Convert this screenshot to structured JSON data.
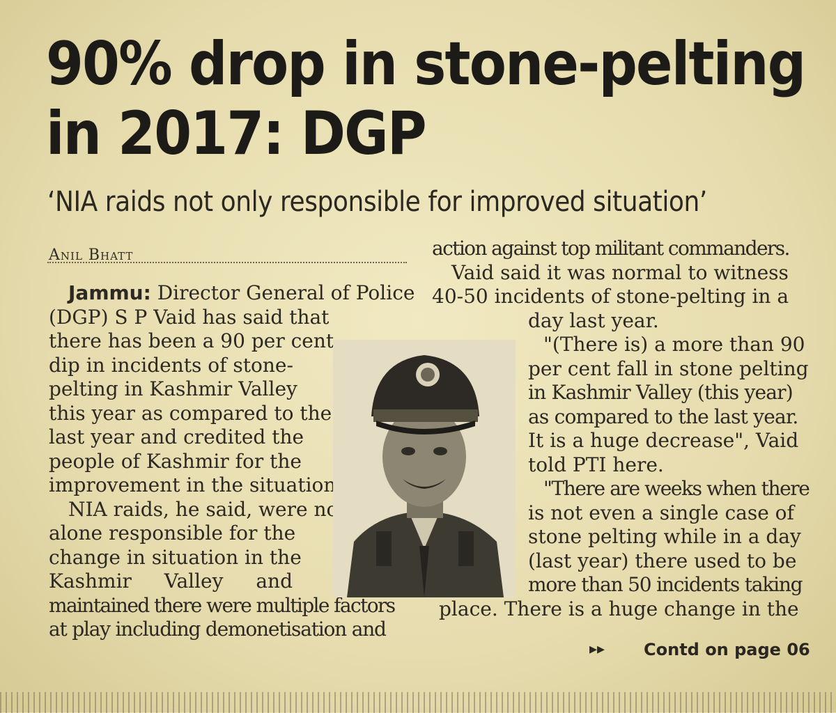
{
  "headline": {
    "line1": "90% drop in stone-pelting",
    "line2": "in 2017: DGP"
  },
  "subhead": "‘NIA raids not only responsible for improved situation’",
  "byline": "Anil Bhatt",
  "left_column": {
    "dateline": "Jammu:",
    "lines": [
      " Director General of Police",
      "(DGP) S P Vaid has said that",
      "there has been a 90 per cent",
      "dip in incidents of stone-",
      "pelting in Kashmir Valley",
      "this year as compared to the",
      "last year and credited the",
      "people of Kashmir for the",
      "improvement in the situation.",
      "NIA raids, he said, were not",
      "alone responsible for the",
      "change in situation in the",
      "Kashmir Valley and",
      "maintained there were multiple factors",
      "at play including demonetisation and"
    ]
  },
  "right_column": {
    "lines": [
      "action against top militant commanders.",
      "Vaid said it was normal to witness",
      "40-50 incidents of stone-pelting in a",
      "day last year.",
      "\"(There is) a more than 90",
      "per cent fall in stone pelting",
      "in Kashmir Valley (this year)",
      "as compared to the last year.",
      "It is a huge decrease\", Vaid",
      "told PTI here.",
      "\"There are weeks when there",
      "is not even a single case of",
      "stone pelting while in a day",
      "(last year) there used to be",
      "more than 50 incidents taking",
      "place. There is a huge change in the"
    ]
  },
  "continuation": {
    "arrows": "▸▸",
    "text": "Contd on page 06"
  }
}
